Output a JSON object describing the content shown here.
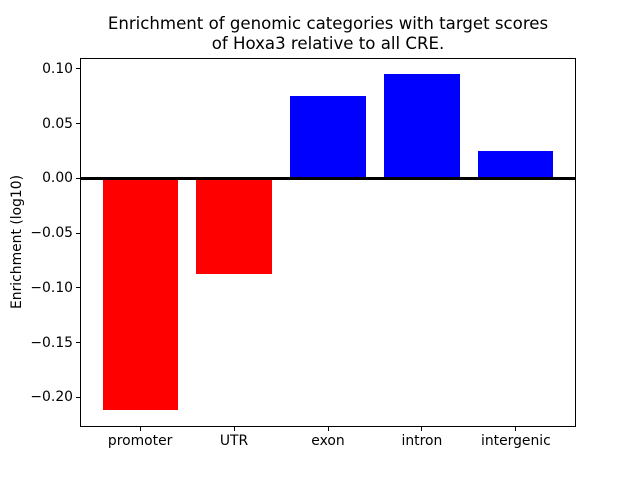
{
  "chart_data": {
    "type": "bar",
    "title": "Enrichment of genomic categories with target scores\nof Hoxa3 relative to all CRE.",
    "xlabel": "",
    "ylabel": "Enrichment (log10)",
    "categories": [
      "promoter",
      "UTR",
      "exon",
      "intron",
      "intergenic"
    ],
    "values": [
      -0.212,
      -0.087,
      0.075,
      0.095,
      0.025
    ],
    "bar_colors": [
      "#ff0000",
      "#ff0000",
      "#0000ff",
      "#0000ff",
      "#0000ff"
    ],
    "negative_color": "#ff0000",
    "positive_color": "#0000ff",
    "bar_width": 0.8,
    "xlim": [
      -0.64,
      4.64
    ],
    "ylim": [
      -0.2274,
      0.1104
    ],
    "yticks": [
      0.1,
      0.05,
      0.0,
      -0.05,
      -0.1,
      -0.15,
      -0.2
    ],
    "ytick_labels": [
      "0.10",
      "0.05",
      "0.00",
      "−0.05",
      "−0.10",
      "−0.15",
      "−0.20"
    ],
    "baseline": 0,
    "baseline_color": "#000000",
    "grid": false,
    "legend": "none",
    "axis_color": "#000000",
    "background": "#ffffff"
  }
}
